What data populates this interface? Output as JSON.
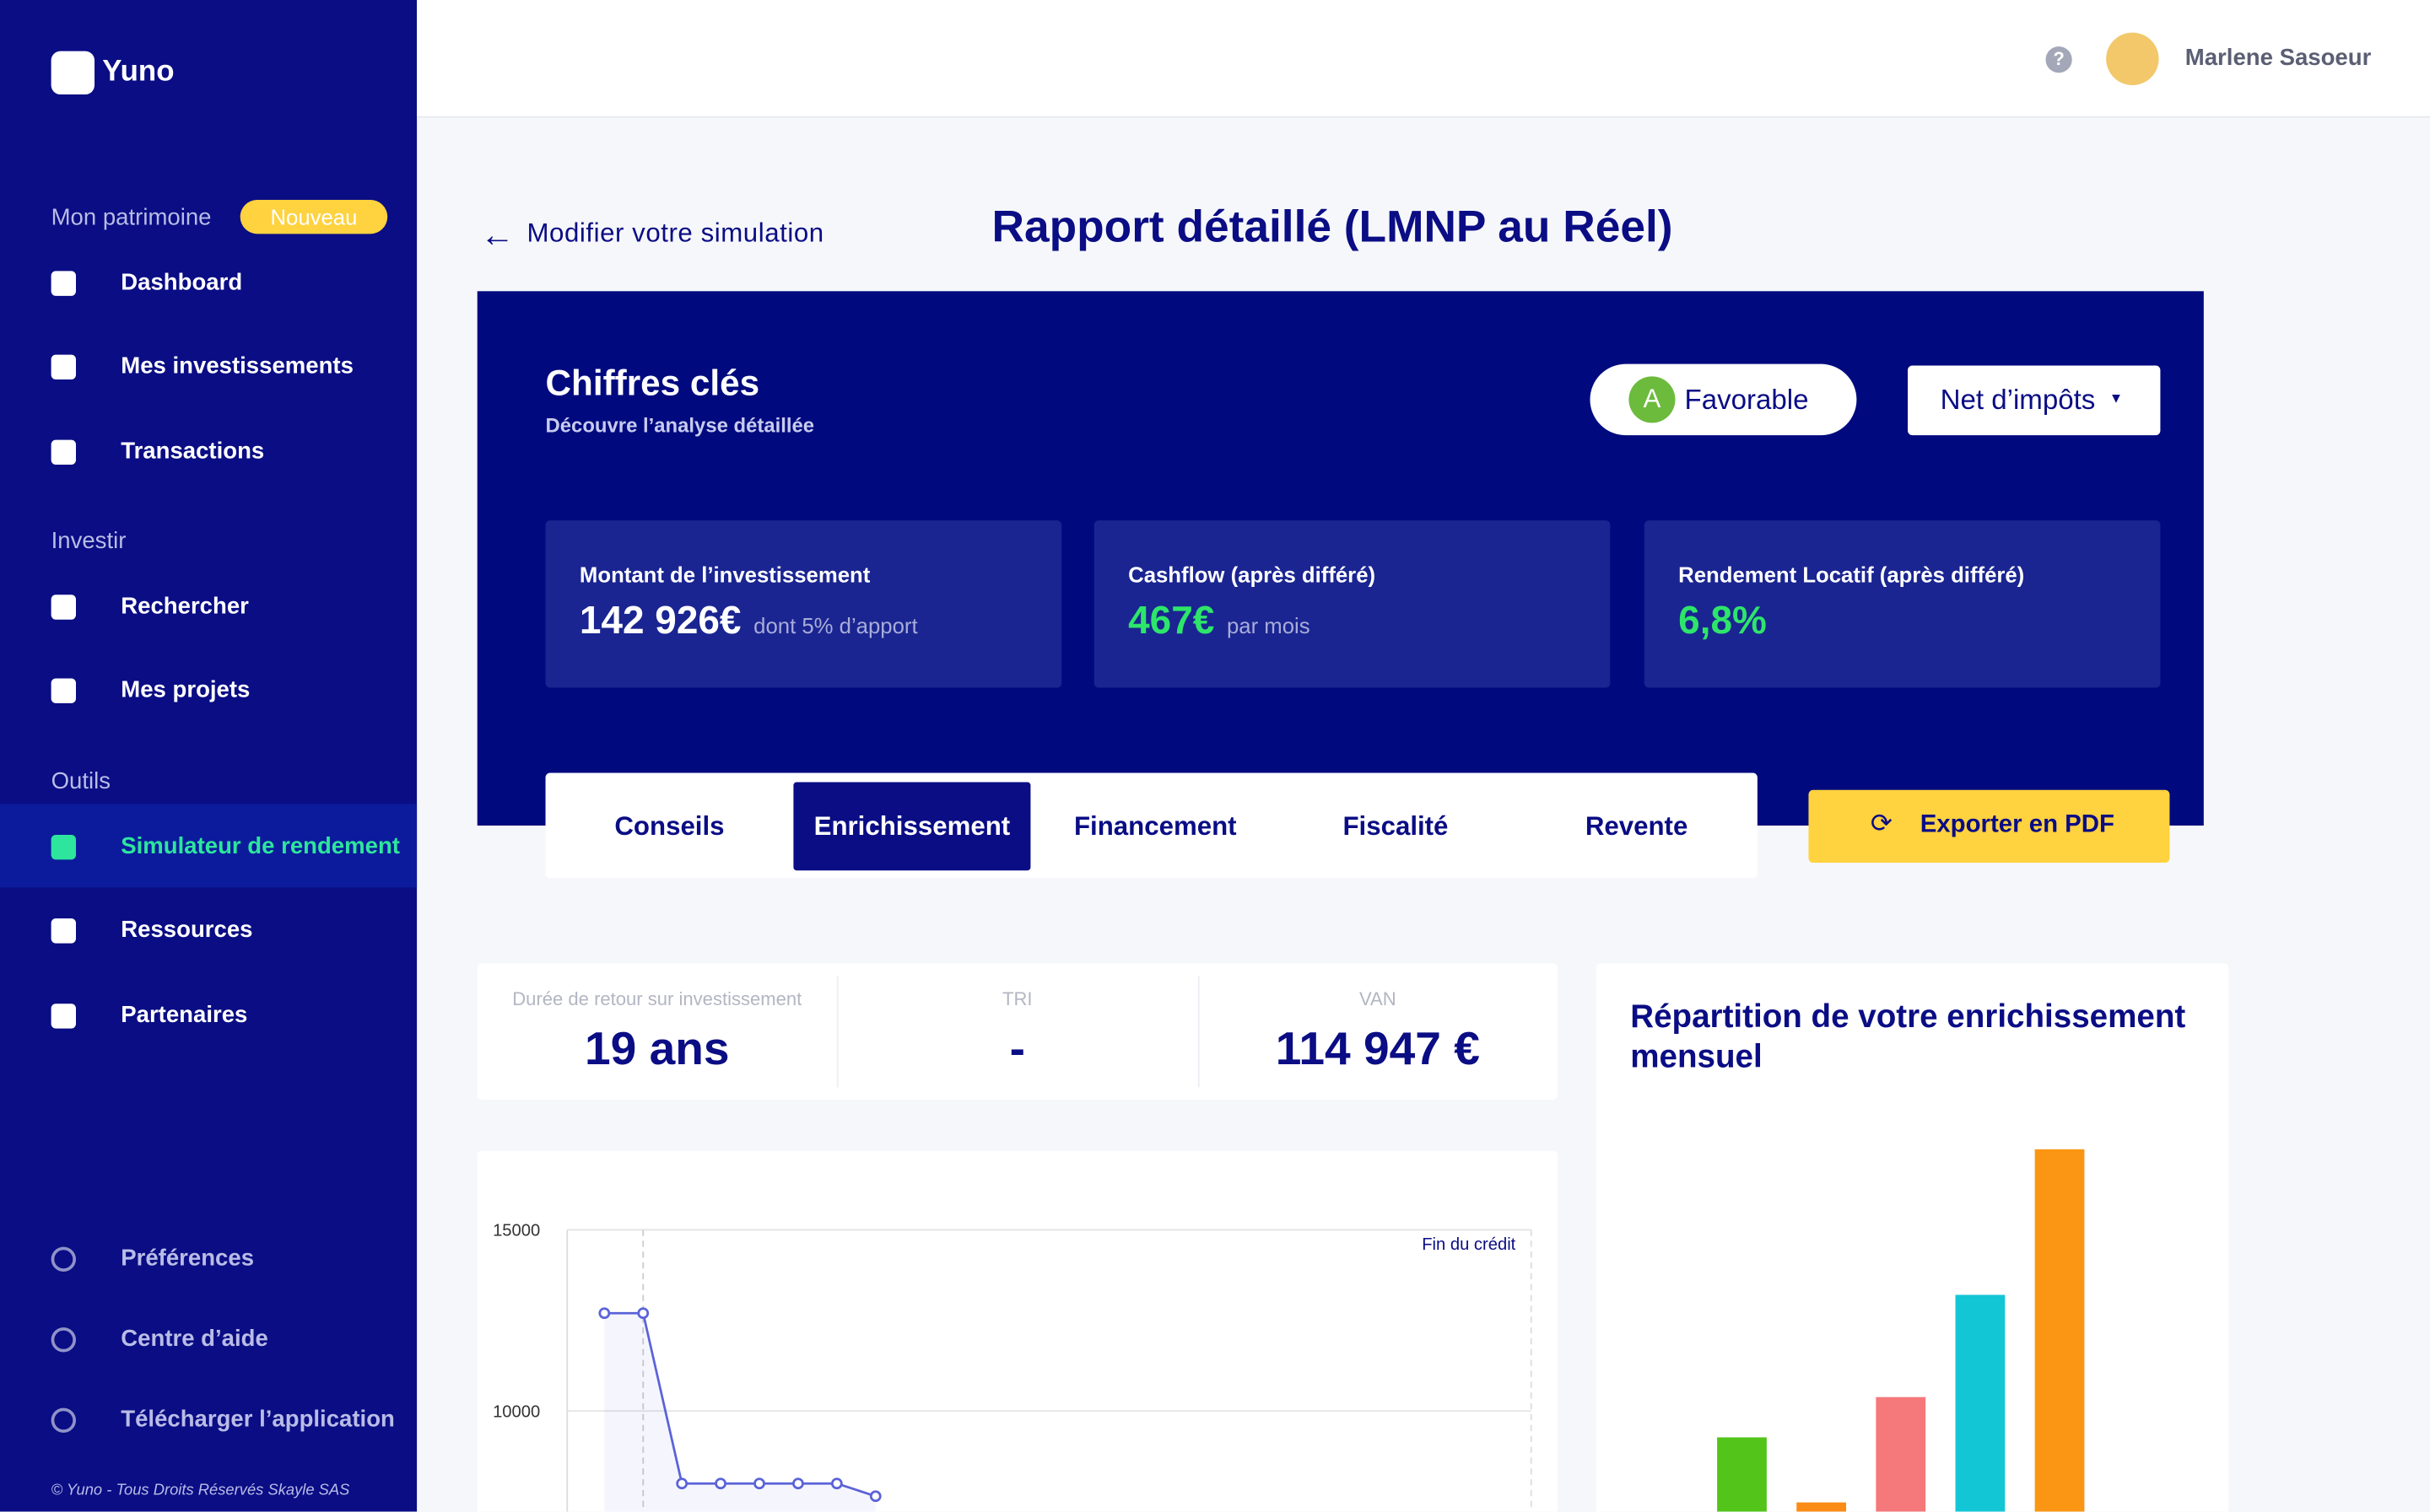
{
  "sidebar": {
    "brand": "Yuno",
    "sections": [
      {
        "title": "Mon patrimoine",
        "badge": "Nouveau",
        "items": [
          "Dashboard",
          "Mes investissements",
          "Transactions"
        ]
      },
      {
        "title": "Investir",
        "items": [
          "Rechercher",
          "Mes projets"
        ]
      },
      {
        "title": "Outils",
        "items": [
          "Simulateur de rendement",
          "Ressources",
          "Partenaires"
        ]
      }
    ],
    "footer_items": [
      "Préférences",
      "Centre d’aide",
      "Télécharger l’application"
    ],
    "copyright": "© Yuno - Tous Droits Réservés Skayle SAS"
  },
  "topbar": {
    "help": "?",
    "user": "Marlene Sasoeur"
  },
  "page": {
    "back": "Modifier votre simulation",
    "title": "Rapport détaillé (LMNP au Réel)"
  },
  "key_figures": {
    "title": "Chiffres clés",
    "subtitle": "Découvre l’analyse détaillée",
    "rating_letter": "A",
    "rating": "Favorable",
    "dropdown": "Net d’impôts",
    "cards": [
      {
        "label": "Montant de l’investissement",
        "value": "142 926€",
        "note": "dont 5% d’apport"
      },
      {
        "label": "Cashflow (après différé)",
        "value": "467€",
        "note": "par mois"
      },
      {
        "label": "Rendement Locatif (après différé)",
        "value": "6,8%"
      }
    ]
  },
  "tabs": [
    "Conseils",
    "Enrichissement",
    "Financement",
    "Fiscalité",
    "Revente"
  ],
  "export": "Exporter en PDF",
  "metrics": [
    {
      "label": "Durée de retour sur investissement",
      "value": "19 ans"
    },
    {
      "label": "TRI",
      "value": "-"
    },
    {
      "label": "VAN",
      "value": "114 947 €"
    }
  ],
  "chart_data": [
    {
      "type": "line",
      "annotation": "Fin du crédit",
      "ylim": [
        5000,
        15000
      ],
      "yticks": [
        10000,
        15000
      ],
      "grid": true,
      "color": "#5b63d8",
      "series": [
        {
          "values": [
            12700,
            12700,
            8000,
            8000,
            8000,
            8000,
            8000,
            7650
          ]
        }
      ]
    },
    {
      "type": "bar",
      "title": "Répartition de votre enrichissement mensuel",
      "ylim": [
        0,
        250
      ],
      "colors": [
        "#52c41a",
        "#fa8c16",
        "#f5787a",
        "#13c6d6",
        "#fa9614"
      ],
      "values": [
        48,
        6,
        74,
        140,
        234
      ]
    }
  ]
}
